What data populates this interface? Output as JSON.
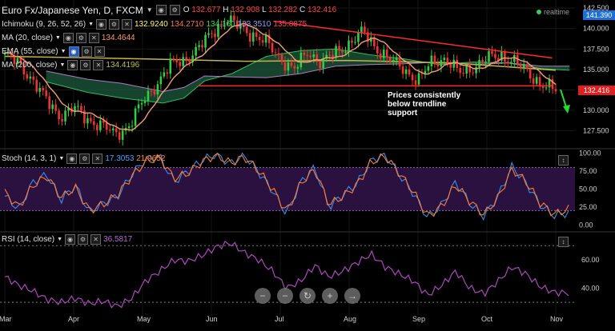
{
  "header": {
    "symbol": "Euro Fx/Japanese Yen, D, FXCM",
    "ohlc": [
      {
        "key": "O",
        "value": "132.677"
      },
      {
        "key": "H",
        "value": "132.908"
      },
      {
        "key": "L",
        "value": "132.282"
      },
      {
        "key": "C",
        "value": "132.416"
      }
    ],
    "realtime": "realtime"
  },
  "indicators": [
    {
      "label": "Ichimoku (9, 26, 52, 26)",
      "values": [
        "132.9240",
        "134.2710",
        "134.160",
        "133.3510",
        "135.8875"
      ],
      "colors": [
        "#ffff66",
        "#ff7744",
        "#33dd55",
        "#9999ff",
        "#ff4466"
      ]
    },
    {
      "label": "MA (20, close)",
      "values": [
        "134.4644"
      ],
      "colors": [
        "#ff9966"
      ]
    },
    {
      "label": "EMA (55, close)",
      "values": [],
      "colors": []
    },
    {
      "label": "MA (200, close)",
      "values": [
        "134.4196"
      ],
      "colors": [
        "#c0c040"
      ]
    }
  ],
  "annotation": {
    "line1": "Prices consistently below trendline",
    "line2": "support"
  },
  "price_tags": {
    "top": "141.390",
    "last": "132.416"
  },
  "panes": {
    "stoch": {
      "label": "Stoch (14, 3, 1)",
      "values": [
        "17.3053",
        "21.9652"
      ],
      "colors": [
        "#4aa3ff",
        "#ff8844"
      ]
    },
    "rsi": {
      "label": "RSI (14, close)",
      "values": [
        "36.5817"
      ],
      "colors": [
        "#b46bd8"
      ]
    }
  },
  "colors": {
    "bull": "#33cc44",
    "bear": "#ee3333",
    "kumo": "#1e5a3c",
    "trend": "#ff2a2a",
    "ma20": "#f0a070",
    "ema55": "#3d9be8",
    "ma200": "#c8b24a",
    "stoch_k": "#3a8eea",
    "stoch_d": "#ff7d2d",
    "rsi": "#b046c0",
    "band": "#2a1140"
  },
  "chart_data": [
    {
      "type": "candlestick",
      "title": "Euro Fx/Japanese Yen, D, FXCM",
      "x": [
        "Mar",
        "Apr",
        "May",
        "Jun",
        "Jul",
        "Aug",
        "Sep",
        "Oct",
        "Nov"
      ],
      "yticks": [
        127.5,
        130.0,
        132.5,
        135.0,
        137.5,
        140.0,
        142.5
      ],
      "ylim": [
        125.7,
        143.2
      ],
      "close_path": [
        {
          "m": 0.0,
          "v": 136.8
        },
        {
          "m": 0.2,
          "v": 135.7
        },
        {
          "m": 0.4,
          "v": 133.8
        },
        {
          "m": 0.6,
          "v": 131.2
        },
        {
          "m": 0.8,
          "v": 129.3
        },
        {
          "m": 1.0,
          "v": 130.3
        },
        {
          "m": 1.2,
          "v": 128.9
        },
        {
          "m": 1.4,
          "v": 128.2
        },
        {
          "m": 1.6,
          "v": 127.0
        },
        {
          "m": 1.8,
          "v": 128.1
        },
        {
          "m": 2.0,
          "v": 131.0
        },
        {
          "m": 2.2,
          "v": 133.2
        },
        {
          "m": 2.4,
          "v": 135.5
        },
        {
          "m": 2.6,
          "v": 136.2
        },
        {
          "m": 2.8,
          "v": 137.4
        },
        {
          "m": 3.0,
          "v": 139.4
        },
        {
          "m": 3.2,
          "v": 141.2
        },
        {
          "m": 3.4,
          "v": 140.2
        },
        {
          "m": 3.6,
          "v": 139.3
        },
        {
          "m": 3.8,
          "v": 138.2
        },
        {
          "m": 4.0,
          "v": 136.4
        },
        {
          "m": 4.2,
          "v": 134.9
        },
        {
          "m": 4.4,
          "v": 137.2
        },
        {
          "m": 4.6,
          "v": 135.8
        },
        {
          "m": 4.8,
          "v": 137.0
        },
        {
          "m": 5.0,
          "v": 138.2
        },
        {
          "m": 5.2,
          "v": 139.6
        },
        {
          "m": 5.4,
          "v": 137.6
        },
        {
          "m": 5.6,
          "v": 136.1
        },
        {
          "m": 5.8,
          "v": 135.0
        },
        {
          "m": 6.0,
          "v": 133.6
        },
        {
          "m": 6.2,
          "v": 135.9
        },
        {
          "m": 6.4,
          "v": 136.4
        },
        {
          "m": 6.6,
          "v": 134.5
        },
        {
          "m": 6.8,
          "v": 135.3
        },
        {
          "m": 7.0,
          "v": 136.3
        },
        {
          "m": 7.2,
          "v": 136.7
        },
        {
          "m": 7.4,
          "v": 136.0
        },
        {
          "m": 7.6,
          "v": 134.5
        },
        {
          "m": 7.8,
          "v": 133.2
        },
        {
          "m": 8.0,
          "v": 132.4
        }
      ],
      "ichimoku_cloud": [
        {
          "m": 0.6,
          "a": 133.5,
          "b": 134.8
        },
        {
          "m": 1.2,
          "a": 132.2,
          "b": 133.8
        },
        {
          "m": 1.7,
          "a": 131.5,
          "b": 133.3
        },
        {
          "m": 2.3,
          "a": 130.9,
          "b": 132.3
        },
        {
          "m": 2.6,
          "a": 131.5,
          "b": 132.8
        },
        {
          "m": 2.9,
          "a": 133.6,
          "b": 134.2
        },
        {
          "m": 3.3,
          "a": 134.5,
          "b": 134.1
        },
        {
          "m": 3.8,
          "a": 136.6,
          "b": 134.0
        },
        {
          "m": 4.3,
          "a": 137.3,
          "b": 134.5
        },
        {
          "m": 4.8,
          "a": 137.5,
          "b": 135.4
        },
        {
          "m": 5.3,
          "a": 136.8,
          "b": 135.6
        },
        {
          "m": 5.8,
          "a": 136.3,
          "b": 135.7
        },
        {
          "m": 6.3,
          "a": 135.6,
          "b": 135.9
        },
        {
          "m": 6.8,
          "a": 135.9,
          "b": 135.6
        },
        {
          "m": 7.3,
          "a": 135.8,
          "b": 135.8
        },
        {
          "m": 7.8,
          "a": 135.1,
          "b": 135.4
        },
        {
          "m": 8.2,
          "a": 134.9,
          "b": 135.4
        }
      ],
      "ma200": [
        {
          "m": 0.0,
          "v": 136.6
        },
        {
          "m": 2.0,
          "v": 136.3
        },
        {
          "m": 3.5,
          "v": 136.0
        },
        {
          "m": 5.0,
          "v": 136.1
        },
        {
          "m": 6.5,
          "v": 135.8
        },
        {
          "m": 8.0,
          "v": 134.9
        }
      ],
      "trendlines": [
        {
          "name": "resistance",
          "from": {
            "m": 3.9,
            "v": 140.9
          },
          "to": {
            "m": 7.95,
            "v": 136.4
          }
        },
        {
          "name": "support",
          "from": {
            "m": 2.8,
            "v": 133.0
          },
          "to": {
            "m": 7.95,
            "v": 133.0
          }
        }
      ]
    },
    {
      "type": "line",
      "title": "Stoch (14, 3, 1)",
      "yticks": [
        0.0,
        25.0,
        50.0,
        75.0,
        100.0
      ],
      "ylim": [
        -3,
        103
      ],
      "band": [
        20,
        80
      ],
      "series": [
        {
          "name": "%K",
          "values": [
            40,
            22,
            60,
            70,
            35,
            55,
            18,
            30,
            40,
            70,
            92,
            95,
            60,
            75,
            90,
            99,
            85,
            98,
            74,
            48,
            15,
            60,
            80,
            25,
            42,
            58,
            90,
            98,
            70,
            44,
            10,
            28,
            60,
            30,
            12,
            40,
            82,
            58,
            28,
            13,
            17
          ]
        },
        {
          "name": "%D",
          "values": [
            45,
            25,
            55,
            68,
            38,
            52,
            20,
            29,
            42,
            68,
            88,
            94,
            65,
            72,
            88,
            98,
            86,
            95,
            76,
            50,
            18,
            58,
            78,
            28,
            40,
            56,
            88,
            96,
            72,
            46,
            12,
            26,
            56,
            33,
            14,
            38,
            78,
            60,
            30,
            15,
            22
          ]
        }
      ]
    },
    {
      "type": "line",
      "title": "RSI (14, close)",
      "yticks": [
        40.0,
        60.0
      ],
      "ylim": [
        25,
        78
      ],
      "levels": [
        30,
        70
      ],
      "series": [
        {
          "name": "RSI",
          "values": [
            48,
            42,
            38,
            32,
            30,
            33,
            29,
            31,
            27,
            33,
            45,
            52,
            60,
            59,
            63,
            69,
            72,
            65,
            60,
            52,
            40,
            45,
            56,
            48,
            52,
            58,
            64,
            55,
            50,
            45,
            35,
            42,
            52,
            40,
            36,
            45,
            55,
            50,
            41,
            37,
            36.6
          ]
        }
      ]
    }
  ],
  "nav": [
    "−",
    "−",
    "↻",
    "+",
    "→"
  ]
}
